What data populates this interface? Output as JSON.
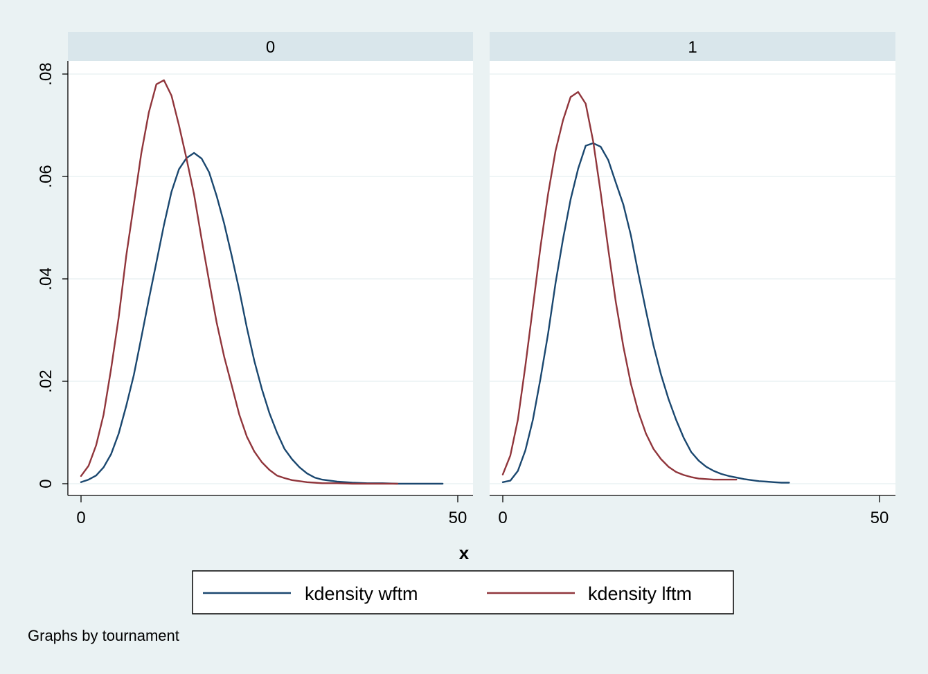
{
  "chart_data": {
    "type": "line",
    "facet_by": "tournament",
    "xlabel": "x",
    "ylabel": "",
    "xlim": [
      0,
      50
    ],
    "ylim": [
      0,
      0.08
    ],
    "x_ticks": [
      "0",
      "50"
    ],
    "y_ticks": [
      "0",
      ".02",
      ".04",
      ".06",
      ".08"
    ],
    "grid": true,
    "legend_position": "bottom",
    "legend": [
      "kdensity wftm",
      "kdensity lftm"
    ],
    "note": "Graphs by tournament",
    "colors": {
      "wftm": "#1a476f",
      "lftm": "#90353b"
    },
    "panels": [
      {
        "label": "0",
        "series": [
          {
            "name": "kdensity wftm",
            "color": "#1a476f",
            "x": [
              0,
              1,
              2,
              3,
              4,
              5,
              6,
              7,
              8,
              9,
              10,
              11,
              12,
              13,
              14,
              15,
              16,
              17,
              18,
              19,
              20,
              21,
              22,
              23,
              24,
              25,
              26,
              27,
              28,
              29,
              30,
              31,
              32,
              34,
              36,
              38,
              40,
              42,
              44,
              46,
              48
            ],
            "y": [
              0.0003,
              0.0008,
              0.0016,
              0.0032,
              0.0058,
              0.0098,
              0.0152,
              0.0212,
              0.0285,
              0.036,
              0.0432,
              0.0505,
              0.057,
              0.0614,
              0.0636,
              0.0646,
              0.0635,
              0.0608,
              0.0562,
              0.0508,
              0.0445,
              0.0378,
              0.0305,
              0.024,
              0.0185,
              0.0138,
              0.01,
              0.0068,
              0.0048,
              0.0032,
              0.002,
              0.0012,
              0.0008,
              0.0004,
              0.0002,
              0.0001,
              0.0001,
              0.0,
              0.0,
              0.0,
              0.0
            ]
          },
          {
            "name": "kdensity lftm",
            "color": "#90353b",
            "x": [
              0,
              1,
              2,
              3,
              4,
              5,
              6,
              7,
              8,
              9,
              10,
              11,
              12,
              13,
              14,
              15,
              16,
              17,
              18,
              19,
              20,
              21,
              22,
              23,
              24,
              25,
              26,
              27,
              28,
              29,
              30,
              31,
              32,
              34,
              36,
              38,
              40,
              42
            ],
            "y": [
              0.0015,
              0.0035,
              0.0075,
              0.0135,
              0.0225,
              0.0325,
              0.0445,
              0.0545,
              0.0645,
              0.0725,
              0.078,
              0.0788,
              0.0758,
              0.07,
              0.0635,
              0.0565,
              0.0478,
              0.0395,
              0.0315,
              0.0248,
              0.0192,
              0.0135,
              0.0092,
              0.0063,
              0.0042,
              0.0027,
              0.0016,
              0.0011,
              0.0007,
              0.0005,
              0.0003,
              0.0002,
              0.0001,
              0.0001,
              0.0,
              0.0,
              0.0,
              0.0
            ]
          }
        ]
      },
      {
        "label": "1",
        "series": [
          {
            "name": "kdensity wftm",
            "color": "#1a476f",
            "x": [
              0,
              1,
              2,
              3,
              4,
              5,
              6,
              7,
              8,
              9,
              10,
              11,
              12,
              13,
              14,
              15,
              16,
              17,
              18,
              19,
              20,
              21,
              22,
              23,
              24,
              25,
              26,
              27,
              28,
              29,
              30,
              31,
              32,
              33,
              34,
              35,
              36,
              37,
              38
            ],
            "y": [
              0.0003,
              0.0006,
              0.0025,
              0.0065,
              0.0125,
              0.0205,
              0.0292,
              0.0392,
              0.0478,
              0.0555,
              0.0615,
              0.066,
              0.0665,
              0.0658,
              0.0632,
              0.0588,
              0.0545,
              0.0485,
              0.041,
              0.0338,
              0.027,
              0.0213,
              0.0165,
              0.0125,
              0.009,
              0.0062,
              0.0045,
              0.0033,
              0.0025,
              0.0019,
              0.0015,
              0.0012,
              0.0009,
              0.0007,
              0.0005,
              0.0004,
              0.0003,
              0.0002,
              0.0002
            ]
          },
          {
            "name": "kdensity lftm",
            "color": "#90353b",
            "x": [
              0,
              1,
              2,
              3,
              4,
              5,
              6,
              7,
              8,
              9,
              10,
              11,
              12,
              13,
              14,
              15,
              16,
              17,
              18,
              19,
              20,
              21,
              22,
              23,
              24,
              25,
              26,
              27,
              28,
              29,
              30,
              31
            ],
            "y": [
              0.0018,
              0.0055,
              0.0125,
              0.023,
              0.0345,
              0.0462,
              0.0565,
              0.065,
              0.071,
              0.0755,
              0.0765,
              0.0742,
              0.0668,
              0.0568,
              0.0458,
              0.0355,
              0.0268,
              0.0195,
              0.014,
              0.0098,
              0.0068,
              0.0048,
              0.0033,
              0.0023,
              0.0017,
              0.0013,
              0.001,
              0.0009,
              0.0008,
              0.0008,
              0.0008,
              0.0008
            ]
          }
        ]
      }
    ]
  }
}
